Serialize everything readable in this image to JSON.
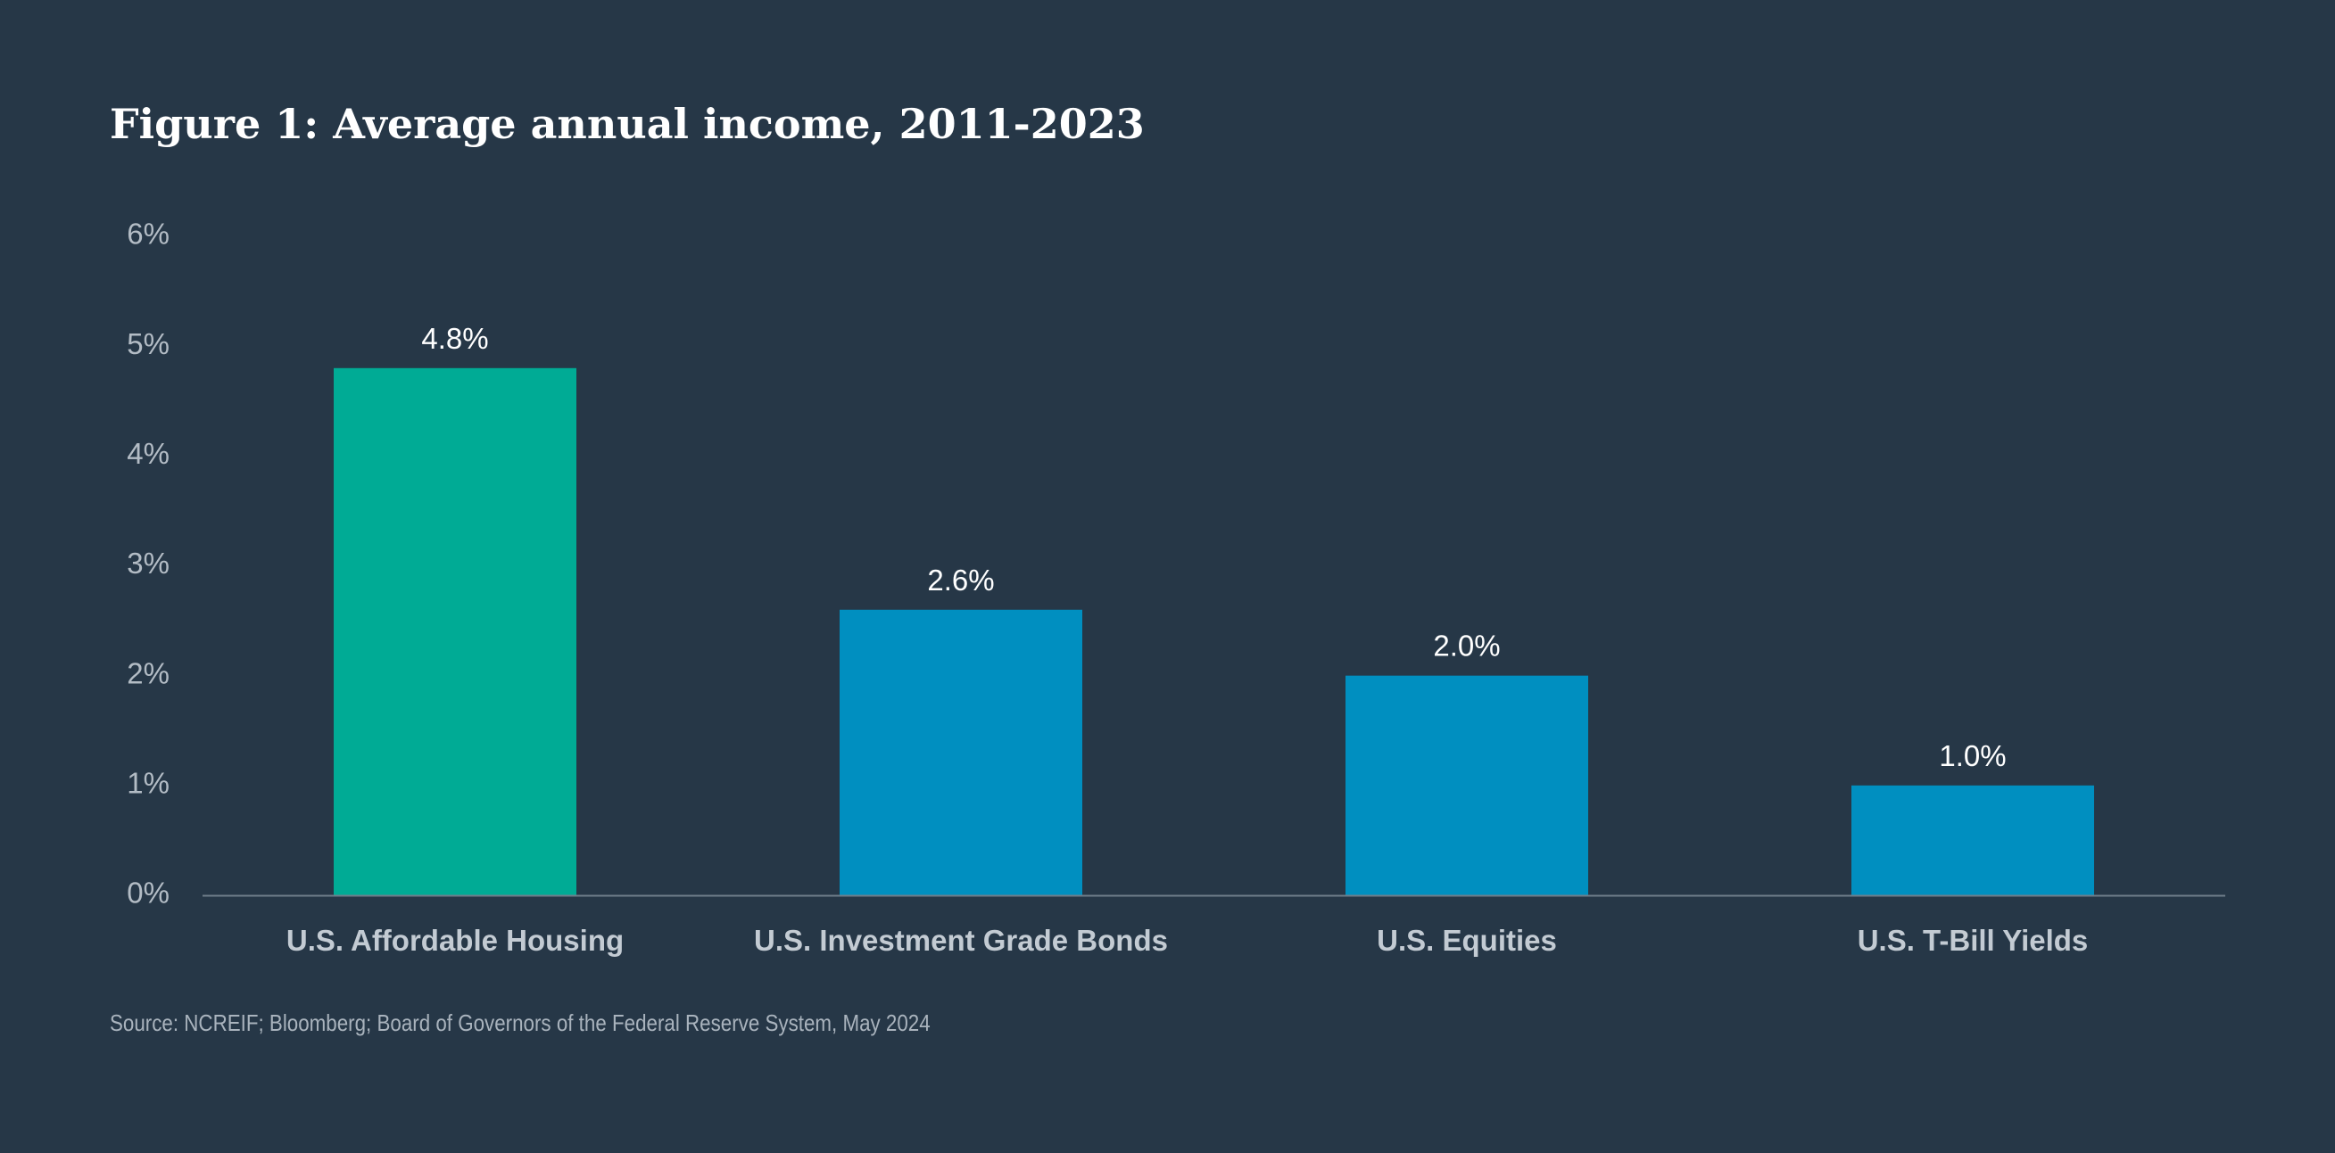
{
  "chart_data": {
    "type": "bar",
    "title": "Figure 1: Average annual income, 2011-2023",
    "categories": [
      "U.S. Affordable Housing",
      "U.S. Investment Grade Bonds",
      "U.S. Equities",
      "U.S. T-Bill Yields"
    ],
    "values": [
      4.8,
      2.6,
      2.0,
      1.0
    ],
    "data_labels": [
      "4.8%",
      "2.6%",
      "2.0%",
      "1.0%"
    ],
    "bar_colors": [
      "#00ab95",
      "#008fc0",
      "#008fc0",
      "#008fc0"
    ],
    "ylim": [
      0,
      6
    ],
    "yticks": [
      0,
      1,
      2,
      3,
      4,
      5,
      6
    ],
    "ytick_labels": [
      "0%",
      "1%",
      "2%",
      "3%",
      "4%",
      "5%",
      "6%"
    ],
    "grid": false,
    "legend": "none",
    "source": "Source: NCREIF; Bloomberg; Board of Governors of the Federal Reserve System, May 2024"
  },
  "colors": {
    "background": "#263747",
    "axis_line": "#6f7d8a",
    "tick_text": "#b3bcc5",
    "category_text": "#c3cbd3",
    "data_label_text": "#ffffff"
  }
}
